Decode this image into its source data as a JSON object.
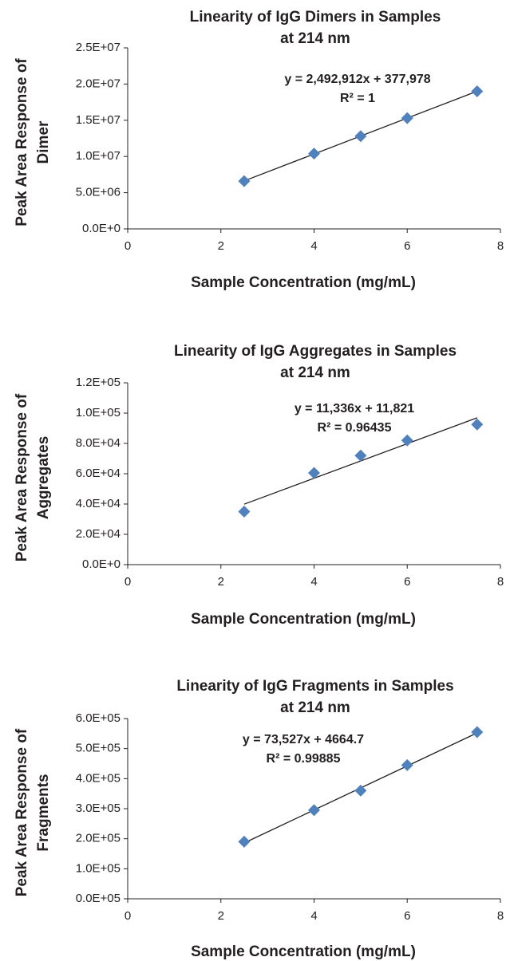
{
  "chart_data": [
    {
      "type": "scatter",
      "title": [
        "Linearity of IgG Dimers in Samples",
        "at 214 nm"
      ],
      "x_label": "Sample Concentration (mg/mL)",
      "y_label": [
        "Peak Area Response of",
        "Dimer"
      ],
      "annotations": [
        "y = 2,492,912x + 377,978",
        "R² = 1"
      ],
      "trendline": true,
      "series": [
        {
          "color": "#4f81bd",
          "x": [
            2.5,
            4,
            5,
            6,
            7.5
          ],
          "values": [
            6600000,
            10400000,
            12800000,
            15300000,
            19000000
          ]
        }
      ],
      "xlim": [
        0,
        8
      ],
      "xticks": [
        0,
        2,
        4,
        6,
        8
      ],
      "ylim": [
        0,
        25000000
      ],
      "yticks": [
        {
          "value": 0,
          "label": "0.0E+0"
        },
        {
          "value": 5000000,
          "label": "5.0E+06"
        },
        {
          "value": 10000000,
          "label": "1.0E+07"
        },
        {
          "value": 15000000,
          "label": "1.5E+07"
        },
        {
          "value": 20000000,
          "label": "2.0E+07"
        },
        {
          "value": 25000000,
          "label": "2.5E+07"
        }
      ]
    },
    {
      "type": "scatter",
      "title": [
        "Linearity of IgG Aggregates in Samples",
        "at 214 nm"
      ],
      "x_label": "Sample Concentration (mg/mL)",
      "y_label": [
        "Peak Area Response of",
        "Aggregates"
      ],
      "annotations": [
        "y = 11,336x + 11,821",
        "R² = 0.96435"
      ],
      "trendline": true,
      "series": [
        {
          "color": "#4f81bd",
          "x": [
            2.5,
            4,
            5,
            6,
            7.5
          ],
          "values": [
            35000,
            60500,
            72000,
            82000,
            92500
          ]
        }
      ],
      "xlim": [
        0,
        8
      ],
      "xticks": [
        0,
        2,
        4,
        6,
        8
      ],
      "ylim": [
        0,
        120000
      ],
      "yticks": [
        {
          "value": 0,
          "label": "0.0E+0"
        },
        {
          "value": 20000,
          "label": "2.0E+04"
        },
        {
          "value": 40000,
          "label": "4.0E+04"
        },
        {
          "value": 60000,
          "label": "6.0E+04"
        },
        {
          "value": 80000,
          "label": "8.0E+04"
        },
        {
          "value": 100000,
          "label": "1.0E+05"
        },
        {
          "value": 120000,
          "label": "1.2E+05"
        }
      ]
    },
    {
      "type": "scatter",
      "title": [
        "Linearity of IgG Fragments in Samples",
        "at 214 nm"
      ],
      "x_label": "Sample Concentration (mg/mL)",
      "y_label": [
        "Peak Area Response of",
        "Fragments"
      ],
      "annotations": [
        "y = 73,527x + 4664.7",
        "R² = 0.99885"
      ],
      "trendline": true,
      "series": [
        {
          "color": "#4f81bd",
          "x": [
            2.5,
            4,
            5,
            6,
            7.5
          ],
          "values": [
            190000,
            295000,
            360000,
            445000,
            555000
          ]
        }
      ],
      "xlim": [
        0,
        8
      ],
      "xticks": [
        0,
        2,
        4,
        6,
        8
      ],
      "ylim": [
        0,
        600000
      ],
      "yticks": [
        {
          "value": 0,
          "label": "0.0E+05"
        },
        {
          "value": 100000,
          "label": "1.0E+05"
        },
        {
          "value": 200000,
          "label": "2.0E+05"
        },
        {
          "value": 300000,
          "label": "3.0E+05"
        },
        {
          "value": 400000,
          "label": "4.0E+05"
        },
        {
          "value": 500000,
          "label": "5.0E+05"
        },
        {
          "value": 600000,
          "label": "6.0E+05"
        }
      ]
    }
  ]
}
